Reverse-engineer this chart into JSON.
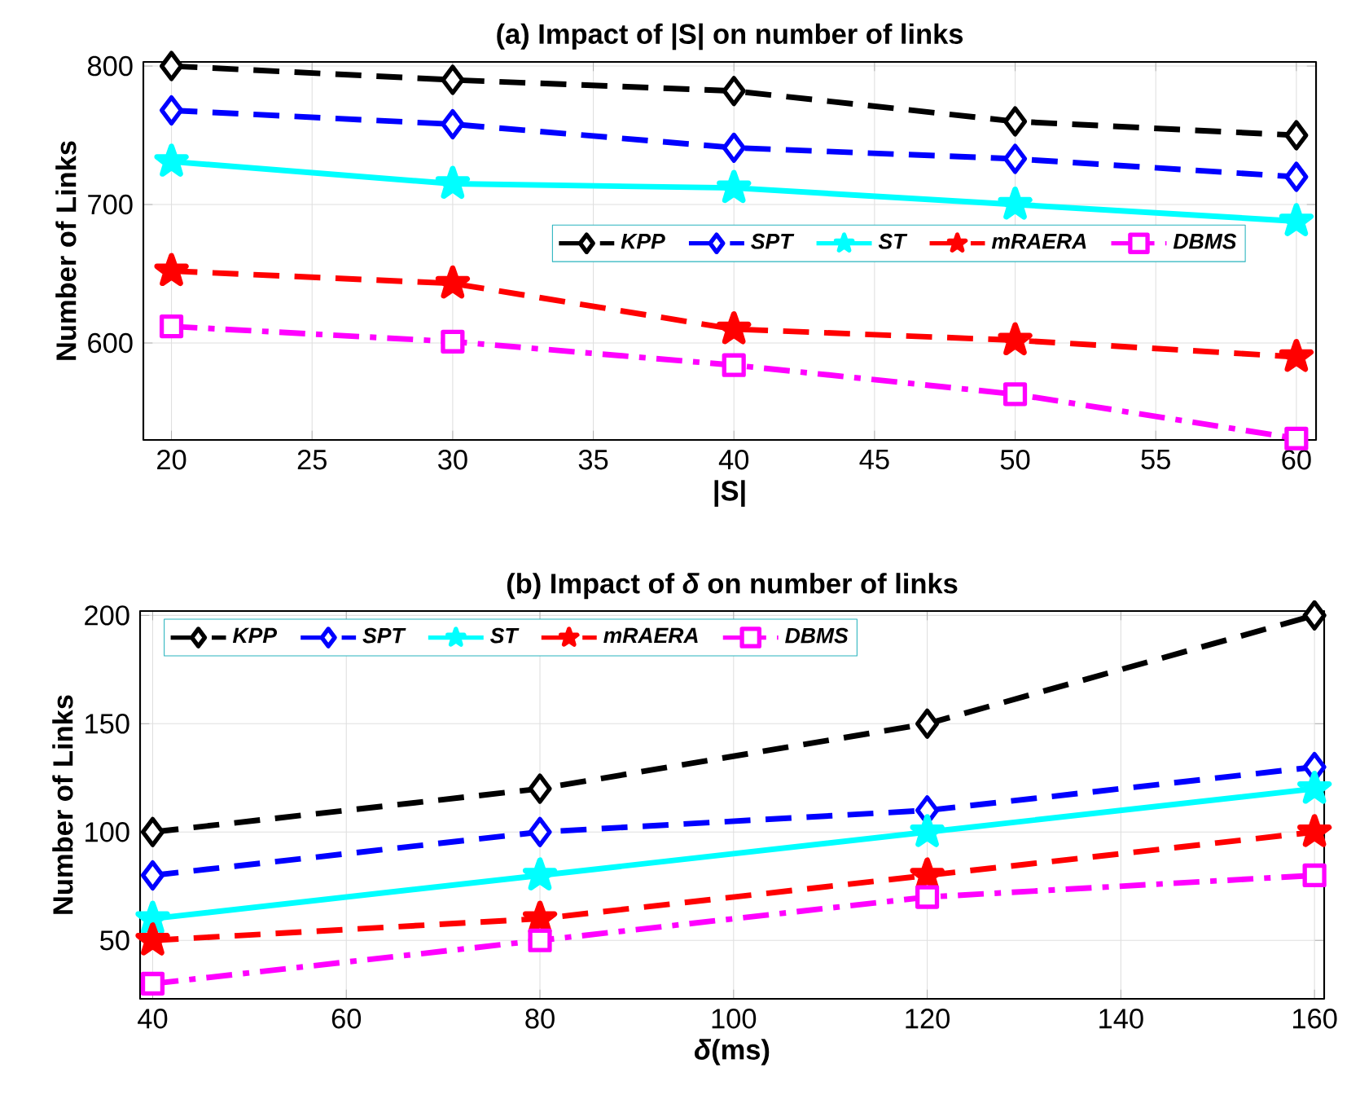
{
  "chart_data": [
    {
      "type": "line",
      "title": "(a) Impact of |S| on number of links",
      "xlabel": "|S|",
      "ylabel": "Number of Links",
      "x": [
        20,
        30,
        40,
        50,
        60
      ],
      "xlim": [
        19,
        60.7
      ],
      "ylim": [
        530,
        803
      ],
      "xticks": [
        20,
        25,
        30,
        35,
        40,
        45,
        50,
        55,
        60
      ],
      "yticks": [
        600,
        700,
        800
      ],
      "grid": true,
      "legend": "right",
      "series": [
        {
          "name": "KPP",
          "color": "#000000",
          "marker": "diamond",
          "line_style": "dashed",
          "values": [
            800,
            790,
            782,
            760,
            750
          ]
        },
        {
          "name": "SPT",
          "color": "#0000ff",
          "marker": "diamond",
          "line_style": "dashed",
          "values": [
            768,
            758,
            741,
            733,
            720
          ]
        },
        {
          "name": "ST",
          "color": "#00ffff",
          "marker": "star",
          "line_style": "solid",
          "values": [
            731,
            715,
            712,
            700,
            688
          ]
        },
        {
          "name": "mRAERA",
          "color": "#ff0000",
          "marker": "star",
          "line_style": "dashed",
          "values": [
            652,
            643,
            610,
            602,
            590
          ]
        },
        {
          "name": "DBMS",
          "color": "#ff00ff",
          "marker": "square",
          "line_style": "dashdot",
          "values": [
            612,
            601,
            584,
            563,
            531
          ]
        }
      ]
    },
    {
      "type": "line",
      "title": "(b) Impact of *δ* on number of links",
      "xlabel": "*δ*(ms)",
      "ylabel": "Number of Links",
      "x": [
        40,
        80,
        120,
        160
      ],
      "xlim": [
        38.7,
        161
      ],
      "ylim": [
        23,
        202
      ],
      "xticks": [
        40,
        60,
        80,
        100,
        120,
        140,
        160
      ],
      "yticks": [
        50,
        100,
        150,
        200
      ],
      "grid": true,
      "legend": "top left",
      "series": [
        {
          "name": "KPP",
          "color": "#000000",
          "marker": "diamond",
          "line_style": "dashed",
          "values": [
            100,
            120,
            150,
            200
          ]
        },
        {
          "name": "SPT",
          "color": "#0000ff",
          "marker": "diamond",
          "line_style": "dashed",
          "values": [
            80,
            100,
            110,
            130
          ]
        },
        {
          "name": "ST",
          "color": "#00ffff",
          "marker": "star",
          "line_style": "solid",
          "values": [
            60,
            80,
            100,
            120
          ]
        },
        {
          "name": "mRAERA",
          "color": "#ff0000",
          "marker": "star",
          "line_style": "dashed",
          "values": [
            50,
            60,
            80,
            100
          ]
        },
        {
          "name": "DBMS",
          "color": "#ff00ff",
          "marker": "square",
          "line_style": "dashdot",
          "values": [
            30,
            50,
            70,
            80
          ]
        }
      ]
    }
  ]
}
